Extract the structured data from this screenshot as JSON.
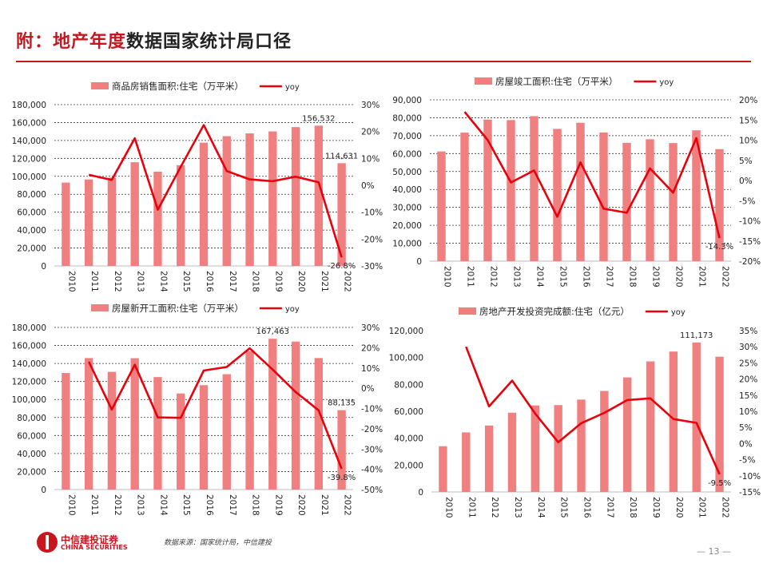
{
  "header": {
    "title_red": "附：地产年度",
    "title_black": "数据国家统计局口径"
  },
  "colors": {
    "accent": "#c8161e",
    "bar": "#f08080",
    "line": "#e8000b"
  },
  "footer": {
    "logo_cn": "中信建投证券",
    "logo_en": "CHINA SECURITIES",
    "source": "数据来源：国家统计局，中信建投",
    "page": "— 13 —"
  },
  "chart_data": [
    {
      "type": "bar+line",
      "categories": [
        "2010",
        "2011",
        "2012",
        "2013",
        "2014",
        "2015",
        "2016",
        "2017",
        "2018",
        "2019",
        "2020",
        "2021",
        "2022"
      ],
      "series": [
        {
          "name": "商品房销售面积:住宅（万平米）",
          "type": "bar",
          "axis": "left",
          "values": [
            93000,
            96500,
            98500,
            115700,
            105200,
            112400,
            137500,
            144800,
            147900,
            150100,
            154900,
            156532,
            114631
          ]
        },
        {
          "name": "yoy",
          "type": "line",
          "axis": "right",
          "values": [
            null,
            3.9,
            2.0,
            17.5,
            -9.1,
            6.9,
            22.4,
            5.3,
            2.2,
            1.5,
            3.2,
            1.1,
            -26.8
          ]
        }
      ],
      "left_axis": {
        "ylim": [
          0,
          180000
        ],
        "ticks": [
          "0",
          "20,000",
          "40,000",
          "60,000",
          "80,000",
          "100,000",
          "120,000",
          "140,000",
          "160,000",
          "180,000"
        ]
      },
      "right_axis": {
        "ylim": [
          -30,
          30
        ],
        "ticks": [
          "-30%",
          "-20%",
          "-10%",
          "0%",
          "10%",
          "20%",
          "30%"
        ]
      },
      "data_labels": [
        {
          "index": 11,
          "series": 0,
          "text": "156,532"
        },
        {
          "index": 12,
          "series": 0,
          "text": "114,631"
        },
        {
          "index": 12,
          "series": 1,
          "text": "-26.8%"
        }
      ],
      "grid": true,
      "legend": "top"
    },
    {
      "type": "bar+line",
      "categories": [
        "2010",
        "2011",
        "2012",
        "2013",
        "2014",
        "2015",
        "2016",
        "2017",
        "2018",
        "2019",
        "2020",
        "2021",
        "2022"
      ],
      "series": [
        {
          "name": "房屋竣工面积:住宅（万平米）",
          "type": "bar",
          "axis": "left",
          "values": [
            61200,
            71700,
            79000,
            78700,
            80900,
            73800,
            77200,
            71800,
            66000,
            68000,
            65900,
            73000,
            62500
          ]
        },
        {
          "name": "yoy",
          "type": "line",
          "axis": "right",
          "values": [
            null,
            17.0,
            10.0,
            -0.5,
            2.5,
            -9.0,
            4.5,
            -7.0,
            -8.0,
            3.0,
            -3.0,
            10.5,
            -14.3
          ]
        }
      ],
      "left_axis": {
        "ylim": [
          0,
          90000
        ],
        "ticks": [
          "0",
          "10,000",
          "20,000",
          "30,000",
          "40,000",
          "50,000",
          "60,000",
          "70,000",
          "80,000",
          "90,000"
        ]
      },
      "right_axis": {
        "ylim": [
          -20,
          20
        ],
        "ticks": [
          "-20%",
          "-15%",
          "-10%",
          "-5%",
          "0%",
          "5%",
          "10%",
          "15%",
          "20%"
        ]
      },
      "data_labels": [
        {
          "index": 12,
          "series": 1,
          "text": "-14.3%"
        }
      ],
      "grid": true,
      "legend": "top"
    },
    {
      "type": "bar+line",
      "categories": [
        "2010",
        "2011",
        "2012",
        "2013",
        "2014",
        "2015",
        "2016",
        "2017",
        "2018",
        "2019",
        "2020",
        "2021",
        "2022"
      ],
      "series": [
        {
          "name": "房屋新开工面积:住宅（万平米）",
          "type": "bar",
          "axis": "left",
          "values": [
            129400,
            146000,
            130700,
            145800,
            124900,
            106700,
            115900,
            128100,
            153800,
            167463,
            164300,
            146000,
            88135
          ]
        },
        {
          "name": "yoy",
          "type": "line",
          "axis": "right",
          "values": [
            null,
            13.0,
            -10.5,
            11.6,
            -14.4,
            -14.6,
            8.7,
            10.5,
            19.7,
            9.2,
            -1.9,
            -10.9,
            -39.8
          ]
        }
      ],
      "left_axis": {
        "ylim": [
          0,
          180000
        ],
        "ticks": [
          "0",
          "20,000",
          "40,000",
          "60,000",
          "80,000",
          "100,000",
          "120,000",
          "140,000",
          "160,000",
          "180,000"
        ]
      },
      "right_axis": {
        "ylim": [
          -50,
          30
        ],
        "ticks": [
          "-50%",
          "-40%",
          "-30%",
          "-20%",
          "-10%",
          "0%",
          "10%",
          "20%",
          "30%"
        ]
      },
      "data_labels": [
        {
          "index": 9,
          "series": 0,
          "text": "167,463"
        },
        {
          "index": 12,
          "series": 0,
          "text": "88,135"
        },
        {
          "index": 12,
          "series": 1,
          "text": "-39.8%"
        }
      ],
      "grid": true,
      "legend": "top"
    },
    {
      "type": "bar+line",
      "categories": [
        "2010",
        "2011",
        "2012",
        "2013",
        "2014",
        "2015",
        "2016",
        "2017",
        "2018",
        "2019",
        "2020",
        "2021",
        "2022"
      ],
      "series": [
        {
          "name": "房地产开发投资完成额:住宅（亿元）",
          "type": "bar",
          "axis": "left",
          "values": [
            34000,
            44300,
            49400,
            58950,
            64350,
            64600,
            68700,
            75150,
            85200,
            97100,
            104450,
            111173,
            100600
          ]
        },
        {
          "name": "yoy",
          "type": "line",
          "axis": "right",
          "values": [
            null,
            30.0,
            11.5,
            19.5,
            9.3,
            0.4,
            6.3,
            9.5,
            13.5,
            14.0,
            7.6,
            6.4,
            -9.5
          ]
        }
      ],
      "left_axis": {
        "ylim": [
          0,
          120000
        ],
        "ticks": [
          "0",
          "20,000",
          "40,000",
          "60,000",
          "80,000",
          "100,000",
          "120,000"
        ]
      },
      "right_axis": {
        "ylim": [
          -15,
          35
        ],
        "ticks": [
          "-15%",
          "-10%",
          "-5%",
          "0%",
          "5%",
          "10%",
          "15%",
          "20%",
          "25%",
          "30%",
          "35%"
        ]
      },
      "data_labels": [
        {
          "index": 11,
          "series": 0,
          "text": "111,173"
        },
        {
          "index": 12,
          "series": 1,
          "text": "-9.5%"
        }
      ],
      "grid": false,
      "legend": "top"
    }
  ]
}
